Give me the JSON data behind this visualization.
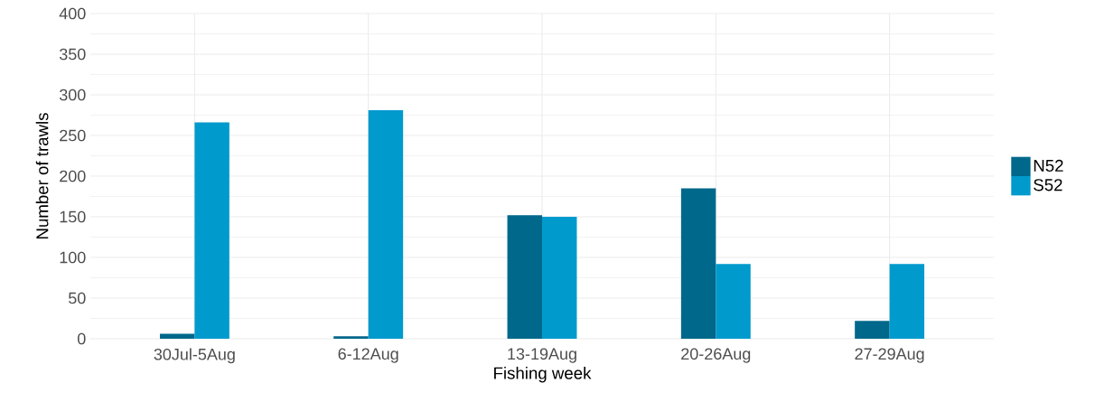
{
  "chart_data": {
    "type": "bar",
    "xlabel": "Fishing week",
    "ylabel": "Number of trawls",
    "categories": [
      "30Jul-5Aug",
      "6-12Aug",
      "13-19Aug",
      "20-26Aug",
      "27-29Aug"
    ],
    "series": [
      {
        "name": "N52",
        "color": "#00688b",
        "values": [
          6,
          3,
          152,
          185,
          22
        ]
      },
      {
        "name": "S52",
        "color": "#009acd",
        "values": [
          266,
          281,
          150,
          92,
          92
        ]
      }
    ],
    "ylim": [
      0,
      400
    ],
    "yticks": [
      0,
      50,
      100,
      150,
      200,
      250,
      300,
      350,
      400
    ],
    "grid": true,
    "legend": "right"
  }
}
